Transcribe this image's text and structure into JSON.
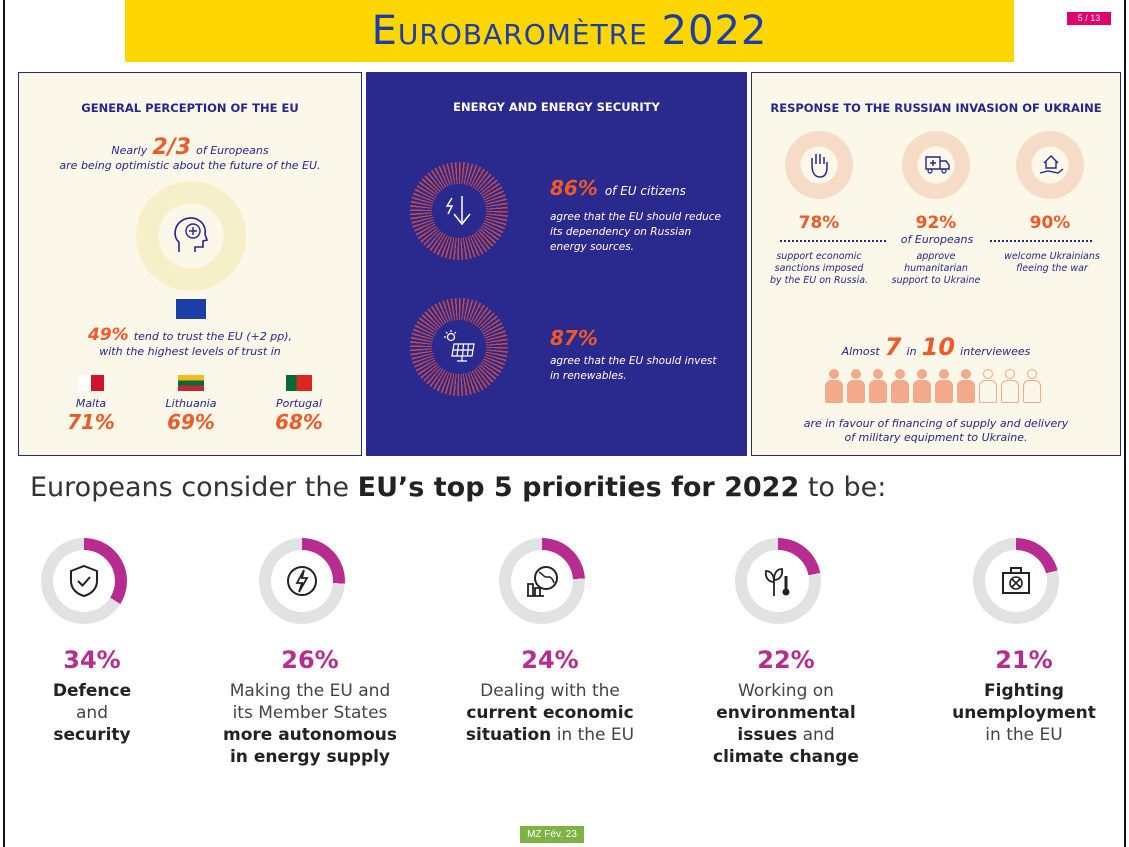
{
  "title": "Eurobaromètre 2022",
  "page_indicator": "5 / 13",
  "colors": {
    "title_bg": "#ffd600",
    "title_text": "#1b3fa6",
    "accent_orange": "#f05a28",
    "priority_magenta": "#b72c8e",
    "panel_blue": "#2a2a8e"
  },
  "panel_perception": {
    "title": "GENERAL PERCEPTION OF THE EU",
    "line1_pre": "Nearly",
    "line1_big": "2/3",
    "line1_post": "of Europeans",
    "line2": "are being optimistic about the future of the EU.",
    "trust_big": "49%",
    "trust_text": "tend to trust the EU (+2 pp),",
    "trust_line2": "with the highest levels of trust in",
    "countries": [
      {
        "name": "Malta",
        "pct": "71%"
      },
      {
        "name": "Lithuania",
        "pct": "69%"
      },
      {
        "name": "Portugal",
        "pct": "68%"
      }
    ]
  },
  "panel_energy": {
    "title": "ENERGY AND ENERGY SECURITY",
    "stat1_pct": "86%",
    "stat1_head": "of EU citizens",
    "stat1_text": "agree that the EU should reduce its dependency on Russian energy sources.",
    "stat2_pct": "87%",
    "stat2_text": "agree that the EU should invest in renewables."
  },
  "panel_ukraine": {
    "title": "RESPONSE TO THE RUSSIAN INVASION OF UKRAINE",
    "stats": [
      {
        "pct": "78%",
        "caption": "support economic sanctions imposed by the EU on Russia.",
        "icon": "hand-stop-icon"
      },
      {
        "pct": "92%",
        "caption": "approve humanitarian support to Ukraine",
        "icon": "ambulance-icon"
      },
      {
        "pct": "90%",
        "caption": "welcome Ukrainians fleeing the war",
        "icon": "home-hand-icon"
      }
    ],
    "mid_label": "of Europeans",
    "almost_pre": "Almost",
    "almost_a": "7",
    "almost_in": "in",
    "almost_b": "10",
    "almost_post": "interviewees",
    "people_filled_fraction": 0.7,
    "footer1": "are in favour of financing of supply and delivery",
    "footer2": "of military equipment to Ukraine."
  },
  "headline": {
    "pre": "Europeans consider the ",
    "bold": "EU’s top 5 priorities for 2022",
    "post": " to be:"
  },
  "priorities": [
    {
      "pct": "34%",
      "share": 0.34,
      "icon": "shield-check-icon",
      "l1": "",
      "b1": "Defence",
      "l2": "and",
      "b2": "security",
      "l3": "",
      "b3": "",
      "l4": ""
    },
    {
      "pct": "26%",
      "share": 0.26,
      "icon": "energy-bolt-icon",
      "l1": "Making the EU and",
      "b1": "",
      "l2": "its Member States",
      "b2": "more autonomous",
      "l3": "",
      "b3": "in energy supply",
      "l4": ""
    },
    {
      "pct": "24%",
      "share": 0.24,
      "icon": "economy-globe-icon",
      "l1": "Dealing with the",
      "b1": "",
      "l2": "",
      "b2": "current economic",
      "l3": "",
      "b3": "situation",
      "l4": " in the EU"
    },
    {
      "pct": "22%",
      "share": 0.22,
      "icon": "plant-thermometer-icon",
      "l1": "Working on",
      "b1": "",
      "l2": "",
      "b2": "environmental",
      "l3": "",
      "b3": "issues",
      "l4": " and",
      "b5": "climate change"
    },
    {
      "pct": "21%",
      "share": 0.21,
      "icon": "briefcase-icon",
      "l1": "",
      "b1": "Fighting",
      "l2": "",
      "b2": "unemployment",
      "l3": "in the EU",
      "b3": "",
      "l4": ""
    }
  ],
  "footer_badge": "MZ  Fév. 23"
}
